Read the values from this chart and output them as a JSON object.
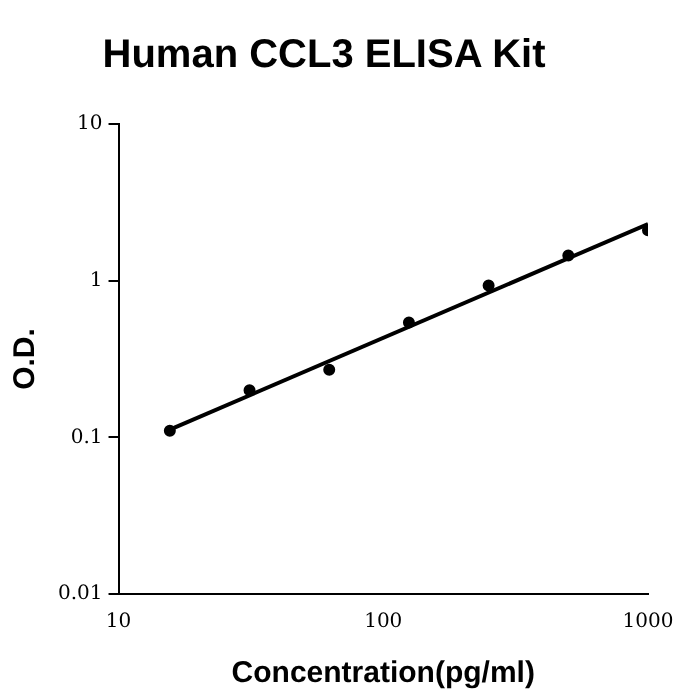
{
  "chart_data": {
    "type": "scatter",
    "title": "Human CCL3 ELISA Kit",
    "xlabel": "Concentration(pg/ml)",
    "ylabel": "O.D.",
    "log": "xy",
    "xlim": [
      10,
      1000
    ],
    "ylim": [
      0.01,
      10
    ],
    "xticks": [
      10,
      100,
      1000
    ],
    "yticks": [
      0.01,
      0.1,
      1,
      10
    ],
    "grid": false,
    "legend": false,
    "marker": "circle",
    "series": [
      {
        "color": "#000000",
        "x": [
          15.625,
          31.25,
          62.5,
          125,
          250,
          500,
          1000
        ],
        "values": [
          0.11,
          0.2,
          0.27,
          0.54,
          0.93,
          1.45,
          2.1
        ]
      },
      {
        "type": "line",
        "color": "#000000",
        "x": [
          15.625,
          1000
        ],
        "values": [
          0.112,
          2.3
        ],
        "marker": "none",
        "line_style": "solid"
      }
    ]
  }
}
